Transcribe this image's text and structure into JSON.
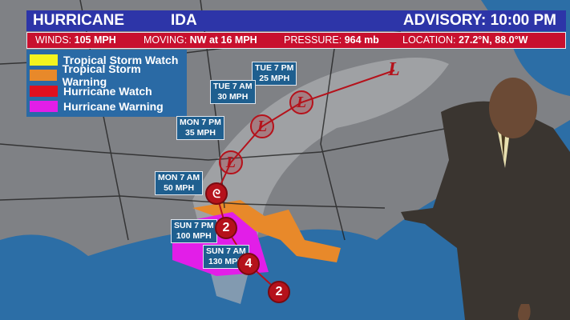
{
  "header": {
    "storm_type": "HURRICANE",
    "storm_name": "IDA",
    "advisory": "ADVISORY: 10:00 PM"
  },
  "stats": {
    "winds_label": "WINDS:",
    "winds_value": "105 MPH",
    "moving_label": "MOVING:",
    "moving_value": "NW at 16 MPH",
    "pressure_label": "PRESSURE:",
    "pressure_value": "964 mb",
    "location_label": "LOCATION:",
    "location_value": "27.2°N, 88.0°W"
  },
  "legend": [
    {
      "label": "Tropical Storm Watch",
      "color": "#f4f41e"
    },
    {
      "label": "Tropical Storm Warning",
      "color": "#e8892a"
    },
    {
      "label": "Hurricane Watch",
      "color": "#e0101e"
    },
    {
      "label": "Hurricane Warning",
      "color": "#e21ee8"
    }
  ],
  "track": [
    {
      "time": "TUE 7 PM",
      "speed": "25 MPH"
    },
    {
      "time": "TUE 7 AM",
      "speed": "30 MPH"
    },
    {
      "time": "MON 7 PM",
      "speed": "35 MPH"
    },
    {
      "time": "MON 7 AM",
      "speed": "50 MPH"
    },
    {
      "time": "SUN 7 PM",
      "speed": "100 MPH"
    },
    {
      "time": "SUN 7 AM",
      "speed": "130 MPH"
    }
  ],
  "markers": {
    "low": "L",
    "cat_current": "2",
    "cat_sun_am": "4",
    "cat_sun_pm": "2"
  }
}
